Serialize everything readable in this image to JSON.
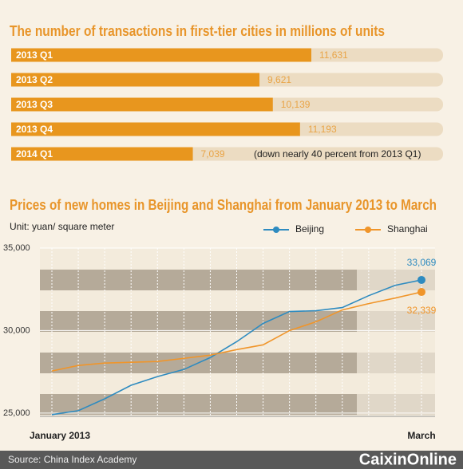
{
  "chart_data": [
    {
      "type": "bar",
      "orientation": "horizontal",
      "title": "The number of transactions in first-tier cities in millions of units",
      "categories": [
        "2013 Q1",
        "2013 Q2",
        "2013 Q3",
        "2013 Q4",
        "2014 Q1"
      ],
      "values": [
        11631,
        9621,
        10139,
        11193,
        7039
      ],
      "value_labels": [
        "11,631",
        "9,621",
        "10,139",
        "11,193",
        "7,039"
      ],
      "color": "#e8961e",
      "annotation": "(down nearly 40 percent from 2013 Q1)"
    },
    {
      "type": "line",
      "title": "Prices of new homes in Beijing and Shanghai from January 2013 to March",
      "subtitle": "Unit: yuan/ square meter",
      "categories": [
        "January 2013",
        null,
        null,
        null,
        null,
        null,
        null,
        null,
        null,
        null,
        null,
        null,
        null,
        null,
        "March"
      ],
      "series": [
        {
          "name": "Beijing",
          "color": "#2e8bc0",
          "values": [
            24904,
            25144,
            25865,
            26683,
            27212,
            27644,
            28365,
            29327,
            30433,
            31154,
            31202,
            31394,
            32115,
            32740,
            33069
          ],
          "value_labels": [
            null,
            null,
            null,
            null,
            null,
            null,
            null,
            null,
            null,
            null,
            null,
            null,
            null,
            null,
            "33,069"
          ]
        },
        {
          "name": "Shanghai",
          "color": "#f0952a",
          "values": [
            27548,
            27885,
            28029,
            28077,
            28125,
            28317,
            28510,
            28846,
            29135,
            30000,
            30529,
            31250,
            31635,
            31971,
            32339
          ],
          "value_labels": [
            null,
            null,
            null,
            null,
            null,
            null,
            null,
            null,
            null,
            null,
            null,
            null,
            null,
            null,
            "32,339"
          ]
        }
      ],
      "ylim": [
        24800,
        35000
      ],
      "yticks": [
        {
          "value": 25000,
          "label": "25,000"
        },
        {
          "value": 30000,
          "label": "30,000"
        },
        {
          "value": 35000,
          "label": "35,000"
        }
      ],
      "grid": true,
      "legend": "top-right"
    }
  ],
  "footer": {
    "source": "Source: China Index Academy",
    "logo": "CaixinOnline"
  }
}
